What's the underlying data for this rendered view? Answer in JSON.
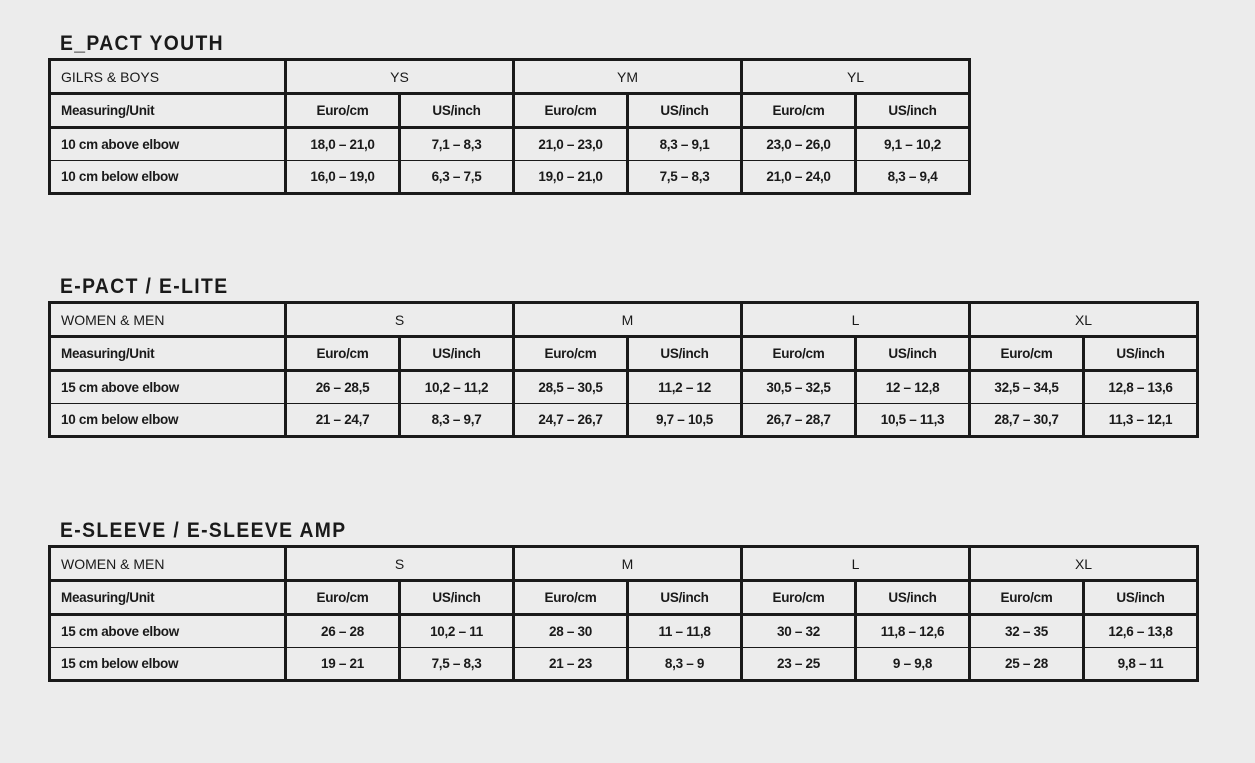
{
  "tables": [
    {
      "title": "E_PACT YOUTH",
      "group_label": "GILRS & BOYS",
      "sizes": [
        "YS",
        "YM",
        "YL"
      ],
      "unit_label": "Measuring/Unit",
      "units": [
        "Euro/cm",
        "US/inch"
      ],
      "rows": [
        {
          "label": "10 cm above elbow",
          "values": [
            "18,0 – 21,0",
            "7,1 – 8,3",
            "21,0 – 23,0",
            "8,3 – 9,1",
            "23,0 – 26,0",
            "9,1 – 10,2"
          ]
        },
        {
          "label": "10 cm below elbow",
          "values": [
            "16,0 – 19,0",
            "6,3 – 7,5",
            "19,0 – 21,0",
            "7,5 – 8,3",
            "21,0 – 24,0",
            "8,3 – 9,4"
          ]
        }
      ]
    },
    {
      "title": "E-PACT / E-LITE",
      "group_label": "WOMEN & MEN",
      "sizes": [
        "S",
        "M",
        "L",
        "XL"
      ],
      "unit_label": "Measuring/Unit",
      "units": [
        "Euro/cm",
        "US/inch"
      ],
      "rows": [
        {
          "label": "15 cm above elbow",
          "values": [
            "26 – 28,5",
            "10,2 – 11,2",
            "28,5 – 30,5",
            "11,2 – 12",
            "30,5 – 32,5",
            "12 – 12,8",
            "32,5 – 34,5",
            "12,8 – 13,6"
          ]
        },
        {
          "label": "10 cm below elbow",
          "values": [
            "21 – 24,7",
            "8,3 – 9,7",
            "24,7 – 26,7",
            "9,7 – 10,5",
            "26,7 – 28,7",
            "10,5 – 11,3",
            "28,7 – 30,7",
            "11,3 – 12,1"
          ]
        }
      ]
    },
    {
      "title": "E-SLEEVE / E-SLEEVE AMP",
      "group_label": "WOMEN & MEN",
      "sizes": [
        "S",
        "M",
        "L",
        "XL"
      ],
      "unit_label": "Measuring/Unit",
      "units": [
        "Euro/cm",
        "US/inch"
      ],
      "rows": [
        {
          "label": "15 cm above elbow",
          "values": [
            "26 – 28",
            "10,2 – 11",
            "28 – 30",
            "11 – 11,8",
            "30 – 32",
            "11,8 – 12,6",
            "32 – 35",
            "12,6 – 13,8"
          ]
        },
        {
          "label": "15 cm below elbow",
          "values": [
            "19 – 21",
            "7,5 – 8,3",
            "21 – 23",
            "8,3 – 9",
            "23 – 25",
            "9 – 9,8",
            "25 – 28",
            "9,8 – 11"
          ]
        }
      ]
    }
  ]
}
